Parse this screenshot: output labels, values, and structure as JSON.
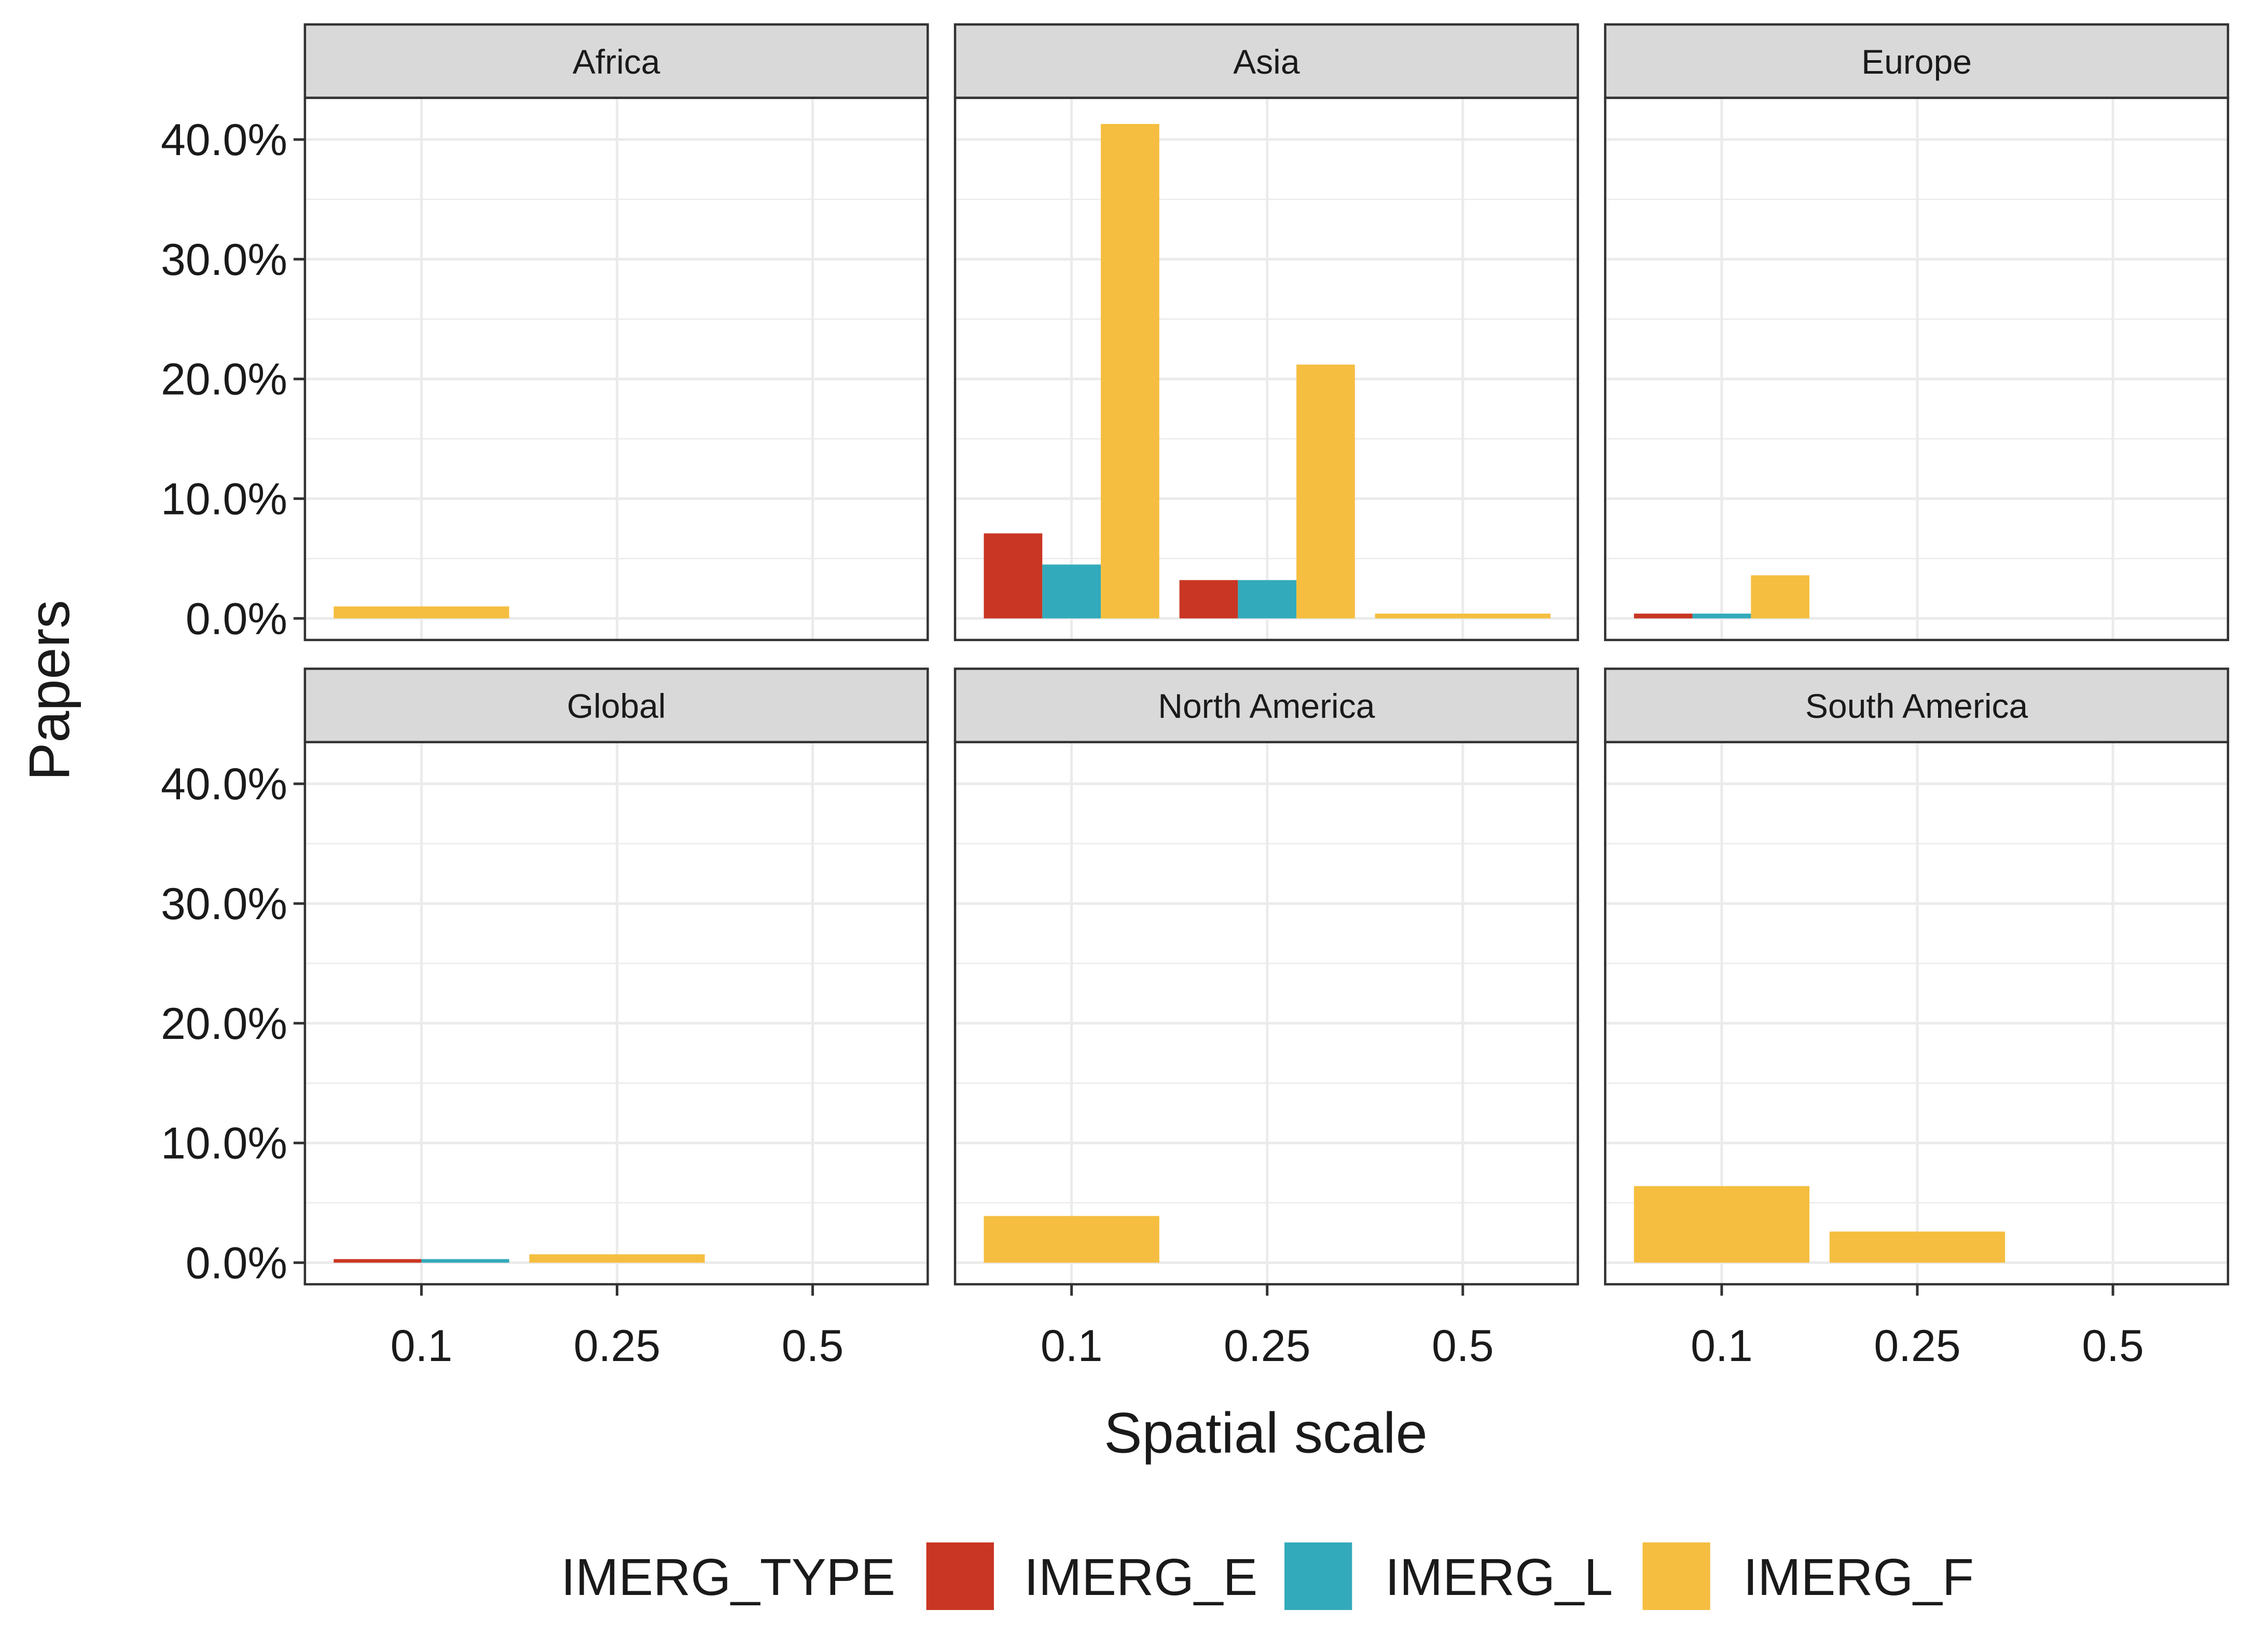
{
  "chart_data": {
    "type": "bar",
    "layout": "facet-grid",
    "xlabel": "Spatial scale",
    "ylabel": "Papers",
    "categories": [
      "0.1",
      "0.25",
      "0.5"
    ],
    "y_ticks": [
      "0.0%",
      "10.0%",
      "20.0%",
      "30.0%",
      "40.0%"
    ],
    "ylim": [
      0,
      0.45
    ],
    "grid": true,
    "legend": {
      "position": "bottom",
      "title": "IMERG_TYPE",
      "entries": [
        "IMERG_E",
        "IMERG_L",
        "IMERG_F"
      ]
    },
    "colors": {
      "IMERG_E": "#c93623",
      "IMERG_L": "#33aabb",
      "IMERG_F": "#f5be40"
    },
    "facets": [
      {
        "name": "Africa",
        "bars": [
          {
            "x": "0.1",
            "series": "IMERG_F",
            "value": 0.01,
            "dodge": 1
          }
        ]
      },
      {
        "name": "Asia",
        "bars": [
          {
            "x": "0.1",
            "series": "IMERG_E",
            "value": 0.071,
            "dodge": 3
          },
          {
            "x": "0.1",
            "series": "IMERG_L",
            "value": 0.045,
            "dodge": 3
          },
          {
            "x": "0.1",
            "series": "IMERG_F",
            "value": 0.413,
            "dodge": 3
          },
          {
            "x": "0.25",
            "series": "IMERG_E",
            "value": 0.032,
            "dodge": 3
          },
          {
            "x": "0.25",
            "series": "IMERG_L",
            "value": 0.032,
            "dodge": 3
          },
          {
            "x": "0.25",
            "series": "IMERG_F",
            "value": 0.212,
            "dodge": 3
          },
          {
            "x": "0.5",
            "series": "IMERG_F",
            "value": 0.004,
            "dodge": 1
          }
        ]
      },
      {
        "name": "Europe",
        "bars": [
          {
            "x": "0.1",
            "series": "IMERG_E",
            "value": 0.004,
            "dodge": 3
          },
          {
            "x": "0.1",
            "series": "IMERG_L",
            "value": 0.004,
            "dodge": 3
          },
          {
            "x": "0.1",
            "series": "IMERG_F",
            "value": 0.036,
            "dodge": 3
          }
        ]
      },
      {
        "name": "Global",
        "bars": [
          {
            "x": "0.1",
            "series": "IMERG_E",
            "value": 0.003,
            "dodge": 2
          },
          {
            "x": "0.1",
            "series": "IMERG_L",
            "value": 0.003,
            "dodge": 2
          },
          {
            "x": "0.25",
            "series": "IMERG_F",
            "value": 0.007,
            "dodge": 1
          }
        ]
      },
      {
        "name": "North America",
        "bars": [
          {
            "x": "0.1",
            "series": "IMERG_F",
            "value": 0.039,
            "dodge": 1
          }
        ]
      },
      {
        "name": "South America",
        "bars": [
          {
            "x": "0.1",
            "series": "IMERG_F",
            "value": 0.064,
            "dodge": 1
          },
          {
            "x": "0.25",
            "series": "IMERG_F",
            "value": 0.026,
            "dodge": 1
          }
        ]
      }
    ]
  }
}
